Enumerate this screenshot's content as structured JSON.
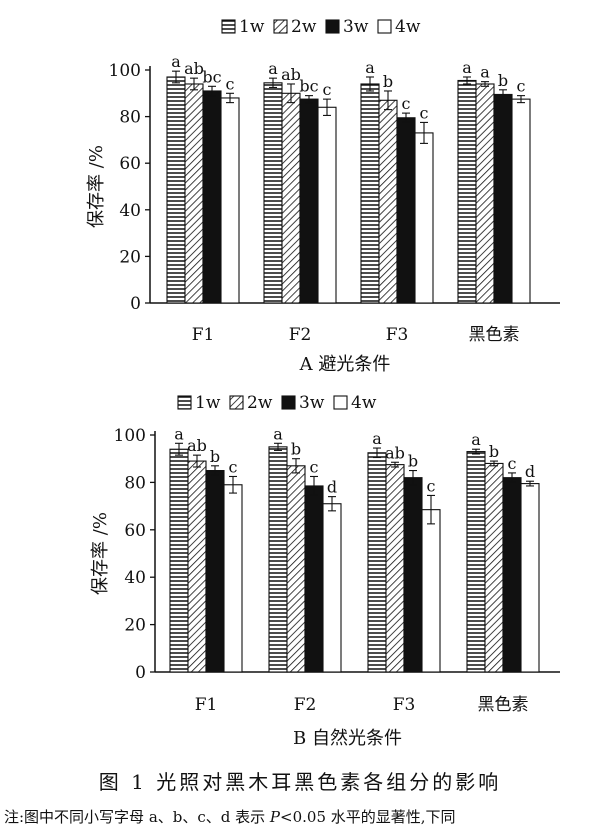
{
  "chart_data": [
    {
      "type": "bar",
      "categories": [
        "F1",
        "F2",
        "F3",
        "黑色素"
      ],
      "ylabel": "保存率 /%",
      "ylim": [
        0,
        100
      ],
      "yticks": [
        0,
        20,
        40,
        60,
        80,
        100
      ],
      "caption": "A 避光条件",
      "legend_position": "top",
      "series": [
        {
          "name": "1w",
          "pattern": "horizontal-lines",
          "values": [
            97,
            94.5,
            94,
            95.5
          ],
          "errors": [
            2.5,
            2,
            3,
            1.5
          ],
          "letters": [
            "a",
            "a",
            "a",
            "a"
          ]
        },
        {
          "name": "2w",
          "pattern": "diagonal-hatch",
          "values": [
            94,
            90,
            87,
            94
          ],
          "errors": [
            2.5,
            4,
            4,
            1
          ],
          "letters": [
            "ab",
            "ab",
            "b",
            "a"
          ]
        },
        {
          "name": "3w",
          "pattern": "solid-black",
          "values": [
            91,
            87.5,
            79.5,
            89.5
          ],
          "errors": [
            2,
            1.5,
            2,
            2
          ],
          "letters": [
            "bc",
            "bc",
            "c",
            "b"
          ]
        },
        {
          "name": "4w",
          "pattern": "white",
          "values": [
            88,
            84,
            73,
            87.5
          ],
          "errors": [
            2,
            3.5,
            4.5,
            1.5
          ],
          "letters": [
            "c",
            "c",
            "c",
            "c"
          ]
        }
      ]
    },
    {
      "type": "bar",
      "categories": [
        "F1",
        "F2",
        "F3",
        "黑色素"
      ],
      "ylabel": "保存率 /%",
      "ylim": [
        0,
        100
      ],
      "yticks": [
        0,
        20,
        40,
        60,
        80,
        100
      ],
      "caption": "B 自然光条件",
      "legend_position": "top",
      "series": [
        {
          "name": "1w",
          "pattern": "horizontal-lines",
          "values": [
            94,
            95,
            92.5,
            93
          ],
          "errors": [
            2.5,
            1.5,
            2,
            1
          ],
          "letters": [
            "a",
            "a",
            "a",
            "a"
          ]
        },
        {
          "name": "2w",
          "pattern": "diagonal-hatch",
          "values": [
            89,
            87,
            87.5,
            88
          ],
          "errors": [
            2.5,
            3,
            1,
            1
          ],
          "letters": [
            "ab",
            "b",
            "ab",
            "b"
          ]
        },
        {
          "name": "3w",
          "pattern": "solid-black",
          "values": [
            85,
            78.5,
            82,
            82
          ],
          "errors": [
            2,
            4,
            3,
            2
          ],
          "letters": [
            "b",
            "c",
            "b",
            "c"
          ]
        },
        {
          "name": "4w",
          "pattern": "white",
          "values": [
            79,
            71,
            68.5,
            79.5
          ],
          "errors": [
            3.5,
            3,
            6,
            1
          ],
          "letters": [
            "c",
            "d",
            "c",
            "d"
          ]
        }
      ]
    }
  ],
  "figure": {
    "title": "图 1   光照对黑木耳黑色素各组分的影响",
    "note_before": "注:图中不同小写字母 a、b、c、d 表示 ",
    "note_p": "P",
    "note_after": "<0.05 水平的显著性,下同"
  }
}
